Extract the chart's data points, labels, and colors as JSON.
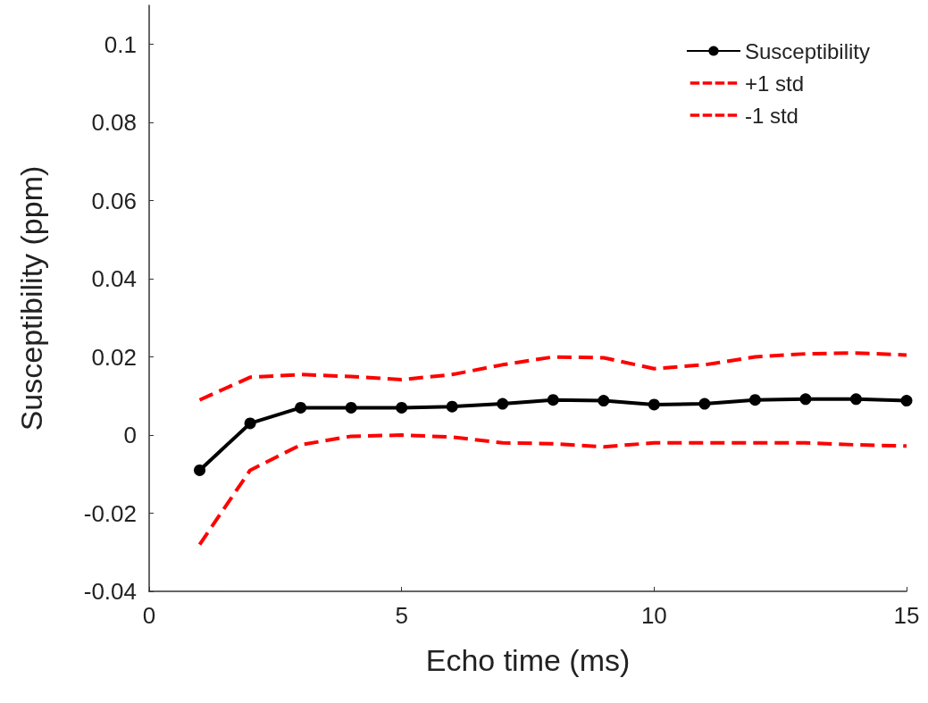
{
  "chart_data": {
    "type": "line",
    "xlabel": "Echo time (ms)",
    "ylabel": "Susceptibility (ppm)",
    "x": [
      1,
      2,
      3,
      4,
      5,
      6,
      7,
      8,
      9,
      10,
      11,
      12,
      13,
      14,
      15
    ],
    "series": [
      {
        "name": "Susceptibility",
        "color": "#000000",
        "marker": "circle",
        "line_style": "solid",
        "values": [
          -0.009,
          0.003,
          0.007,
          0.007,
          0.007,
          0.0073,
          0.008,
          0.009,
          0.0088,
          0.0078,
          0.008,
          0.009,
          0.0092,
          0.0092,
          0.0088
        ]
      },
      {
        "name": "+1 std",
        "color": "#ff0000",
        "marker": "none",
        "line_style": "dashed",
        "values": [
          0.009,
          0.0148,
          0.0155,
          0.015,
          0.0142,
          0.0155,
          0.018,
          0.02,
          0.0198,
          0.017,
          0.018,
          0.02,
          0.0208,
          0.021,
          0.0205
        ]
      },
      {
        "name": "-1 std",
        "color": "#ff0000",
        "marker": "none",
        "line_style": "dashed",
        "values": [
          -0.028,
          -0.009,
          -0.0025,
          -0.0003,
          0,
          -0.0005,
          -0.002,
          -0.0022,
          -0.003,
          -0.002,
          -0.002,
          -0.002,
          -0.002,
          -0.0025,
          -0.0028
        ]
      }
    ],
    "xlim": [
      0,
      15
    ],
    "xticks": [
      0,
      5,
      10,
      15
    ],
    "ylim": [
      -0.04,
      0.11
    ],
    "yticks": [
      -0.04,
      -0.02,
      0,
      0.02,
      0.04,
      0.06,
      0.08,
      0.1
    ],
    "grid": false,
    "legend": "top right"
  }
}
